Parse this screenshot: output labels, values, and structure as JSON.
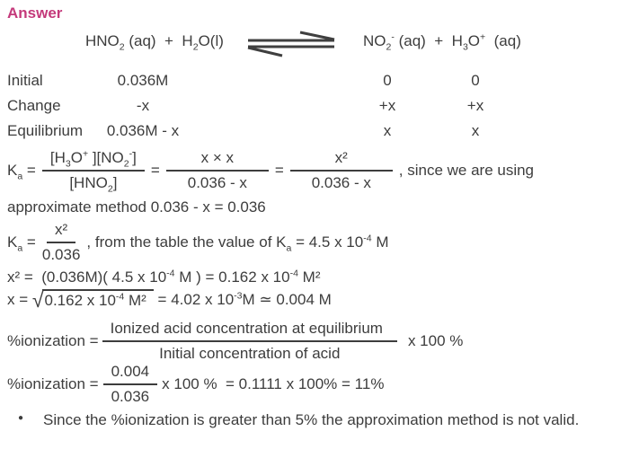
{
  "page": {
    "heading": "Answer",
    "accent_color": "#c43a7b",
    "text_color": "#3d3d3d"
  },
  "equation": {
    "left": "HNO_2_ (aq)  +  H_2_O(l)",
    "right": "NO_2_^-^ (aq)  +  H_3_O^+^  (aq)",
    "arrow_icon": "equilibrium-arrows"
  },
  "ice_table": {
    "rows": [
      {
        "label": "Initial",
        "hno2": "0.036M",
        "no2": "0",
        "h3o": "0"
      },
      {
        "label": "Change",
        "hno2": "-x",
        "no2": "+x",
        "h3o": "+x"
      },
      {
        "label": "Equilibrium",
        "hno2": "0.036M - x",
        "no2": "x",
        "h3o": "x"
      }
    ]
  },
  "ka_line1": {
    "lhs": "K_a_ =",
    "frac1_num": "[H_3_O^+^ ][NO_2_^-^]",
    "frac1_den": "[HNO_2_]",
    "eq1": "=",
    "frac2_num": "x × x",
    "frac2_den": "0.036 - x",
    "eq2": "=",
    "frac3_num": "x²",
    "frac3_den": "0.036 - x",
    "tail": ", since we are using"
  },
  "approx_line": "approximate method 0.036 - x = 0.036",
  "ka_line2": {
    "lhs": "K_a_ =",
    "frac_num": "x²",
    "frac_den": "0.036",
    "tail": ", from the table the value of K_a_ = 4.5 x 10^-4^ M"
  },
  "x2_line": "x² =  (0.036M)( 4.5 x 10^-4^ M ) = 0.162 x 10^-4^ M²",
  "sqrt_line": {
    "prefix": "x = ",
    "radical": "√",
    "radicand": "0.162 x 10^-4^ M²",
    "result": " = 4.02 x 10^-3^M ≃ 0.004 M"
  },
  "pct_line1": {
    "lhs": "%ionization =",
    "frac_num": "Ionized acid concentration at equilibrium",
    "frac_den": "Initial concentration of acid",
    "tail": "x 100 %"
  },
  "pct_line2": {
    "lhs": "%ionization =",
    "frac_num": "0.004",
    "frac_den": "0.036",
    "tail": "x 100 %  = 0.1111 x 100% = 11%"
  },
  "bullet": {
    "marker": "●",
    "text": "Since the %ionization is greater than 5% the approximation method is not valid."
  }
}
